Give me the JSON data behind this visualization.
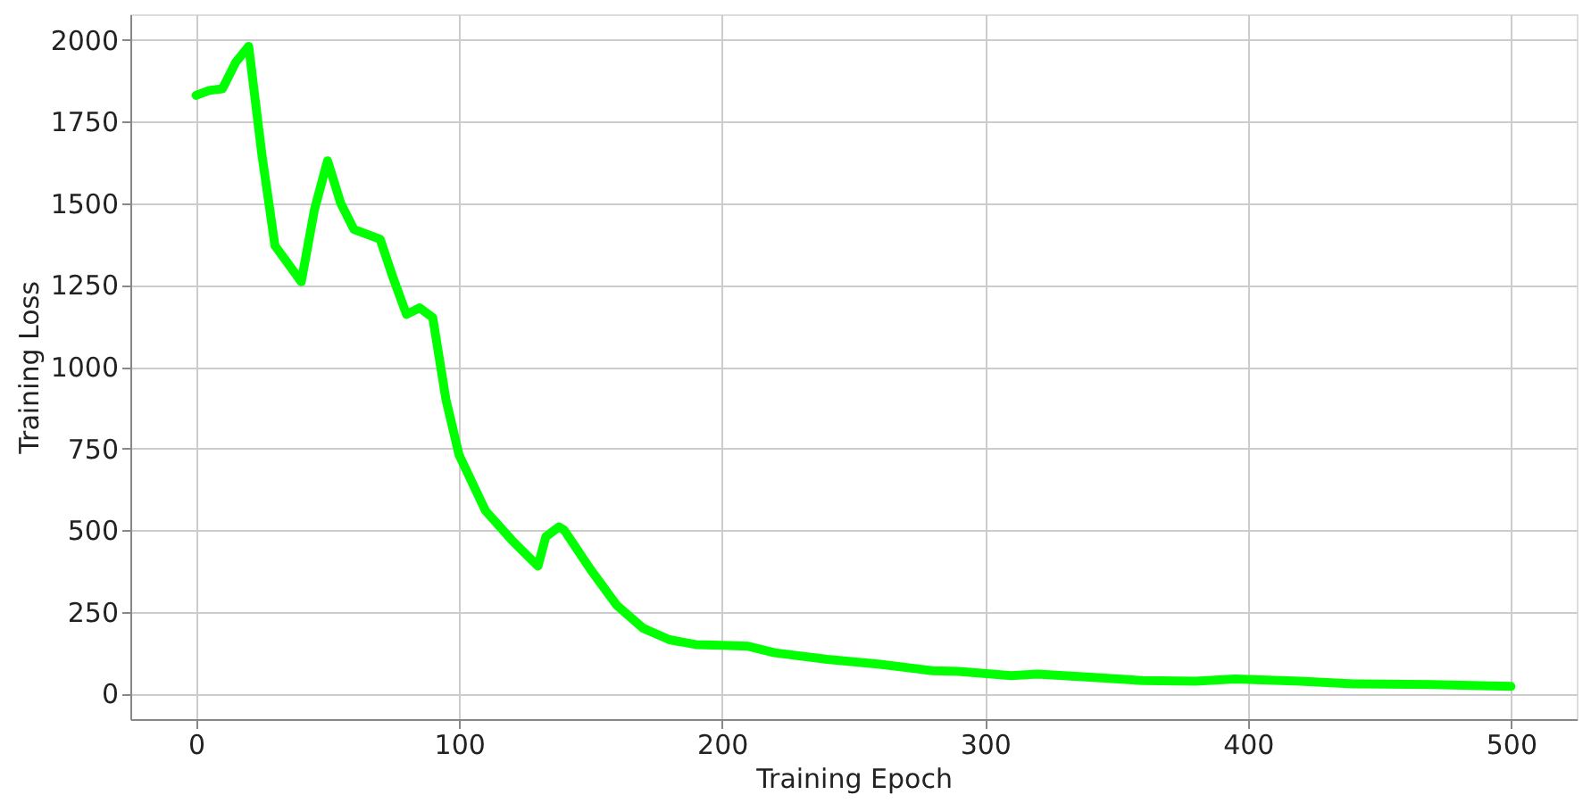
{
  "chart_data": {
    "type": "line",
    "xlabel": "Training Epoch",
    "ylabel": "Training Loss",
    "xlim": [
      -25,
      525
    ],
    "xticks": [
      0,
      100,
      200,
      300,
      400,
      500
    ],
    "ylim": [
      -78,
      2078
    ],
    "yticks": [
      0,
      250,
      500,
      750,
      1000,
      1250,
      1500,
      1750,
      2000
    ],
    "grid": true,
    "x": [
      0,
      5,
      10,
      15,
      20,
      25,
      30,
      40,
      45,
      50,
      55,
      60,
      70,
      75,
      80,
      85,
      90,
      95,
      100,
      110,
      120,
      130,
      133,
      138,
      140,
      150,
      160,
      170,
      180,
      190,
      200,
      210,
      220,
      240,
      260,
      280,
      290,
      310,
      320,
      340,
      360,
      380,
      395,
      420,
      440,
      470,
      500
    ],
    "series": [
      {
        "color": "#00ff00",
        "values": [
          1830,
          1845,
          1850,
          1930,
          1980,
          1650,
          1370,
          1260,
          1480,
          1630,
          1500,
          1420,
          1390,
          1270,
          1160,
          1180,
          1150,
          900,
          730,
          560,
          470,
          390,
          480,
          510,
          500,
          380,
          270,
          200,
          165,
          150,
          148,
          145,
          125,
          105,
          90,
          70,
          68,
          55,
          60,
          50,
          40,
          38,
          45,
          38,
          30,
          28,
          22
        ]
      }
    ]
  }
}
